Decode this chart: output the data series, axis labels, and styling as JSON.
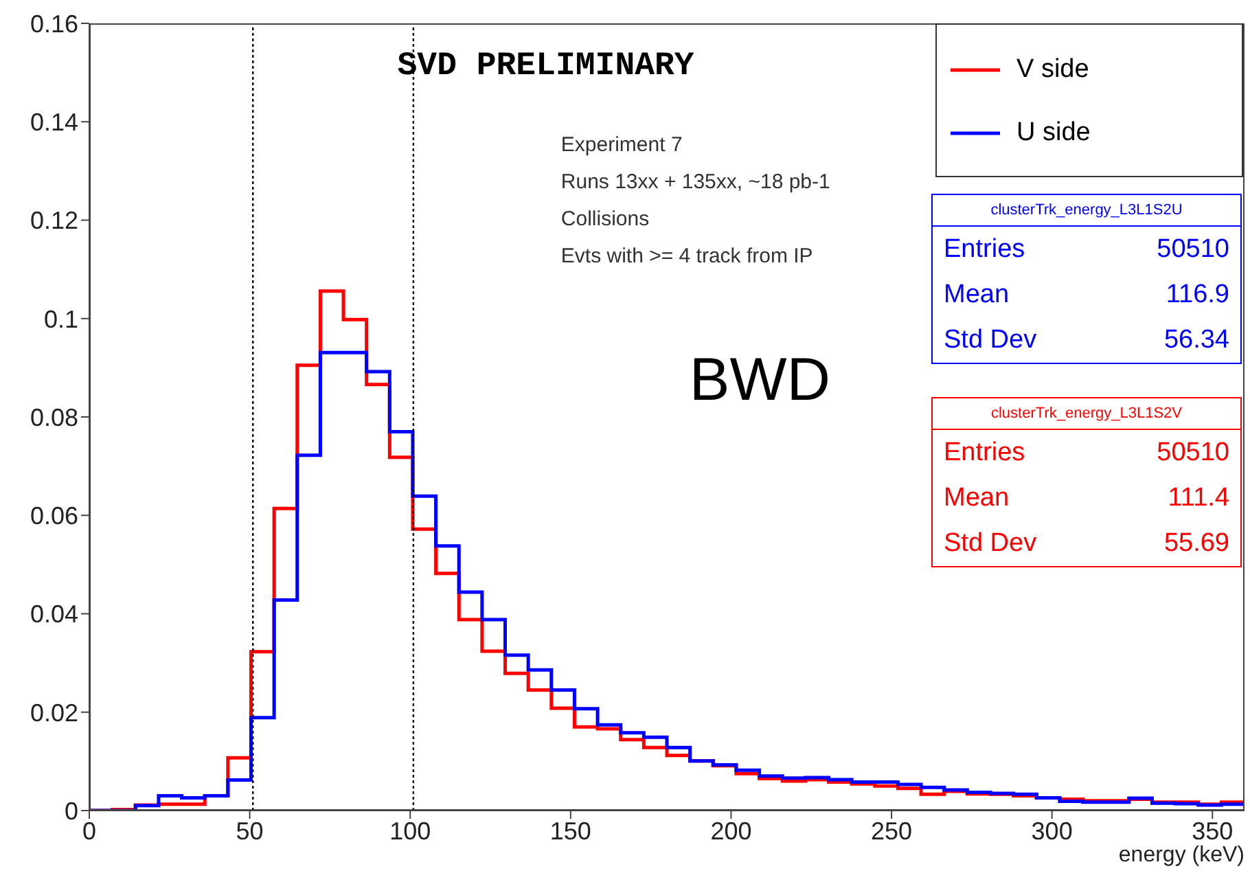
{
  "chart_data": {
    "type": "histogram",
    "title": "SVD PRELIMINARY",
    "xlabel": "energy (keV)",
    "bins": [
      0,
      7.2,
      14.4,
      21.6,
      28.8,
      36,
      43.2,
      50.4,
      57.6,
      64.8,
      72,
      79.2,
      86.4,
      93.6,
      100.8,
      108,
      115.2,
      122.4,
      129.6,
      136.8,
      144,
      151.2,
      158.4,
      165.6,
      172.8,
      180,
      187.2,
      194.4,
      201.6,
      208.8,
      216,
      223.2,
      230.4,
      237.6,
      244.8,
      252,
      259.2,
      266.4,
      273.6,
      280.8,
      288,
      295.2,
      302.4,
      309.6,
      316.8,
      324,
      331.2,
      338.4,
      345.6,
      352.8,
      360
    ],
    "series": [
      {
        "name": "V side",
        "color": "#ff0000",
        "values": [
          0,
          0.0002,
          0.0011,
          0.0013,
          0.0013,
          0.003,
          0.0107,
          0.0323,
          0.0614,
          0.0905,
          0.1056,
          0.0998,
          0.0866,
          0.0718,
          0.0572,
          0.0482,
          0.0388,
          0.0324,
          0.0279,
          0.0245,
          0.0208,
          0.017,
          0.0166,
          0.0144,
          0.0128,
          0.0112,
          0.0101,
          0.0091,
          0.0075,
          0.0065,
          0.006,
          0.0063,
          0.0058,
          0.0054,
          0.005,
          0.0045,
          0.0033,
          0.0039,
          0.0034,
          0.0033,
          0.003,
          0.0026,
          0.0023,
          0.002,
          0.002,
          0.0023,
          0.0017,
          0.0017,
          0.0013,
          0.0017
        ]
      },
      {
        "name": "U side",
        "color": "#0000ff",
        "values": [
          0,
          0,
          0.001,
          0.003,
          0.0026,
          0.003,
          0.0062,
          0.0189,
          0.0428,
          0.0722,
          0.0931,
          0.0931,
          0.0892,
          0.077,
          0.0639,
          0.0538,
          0.0444,
          0.0388,
          0.0316,
          0.0286,
          0.0245,
          0.0207,
          0.0174,
          0.0158,
          0.0149,
          0.0128,
          0.0101,
          0.0093,
          0.0082,
          0.007,
          0.0066,
          0.0067,
          0.0063,
          0.0058,
          0.0058,
          0.0053,
          0.0047,
          0.0042,
          0.0037,
          0.0035,
          0.0033,
          0.0026,
          0.0019,
          0.0017,
          0.0017,
          0.0025,
          0.0015,
          0.0014,
          0.0011,
          0.0013
        ]
      }
    ],
    "xlim": [
      0,
      360
    ],
    "xticks": [
      0,
      50,
      100,
      150,
      200,
      250,
      300,
      350
    ],
    "ylim": [
      0,
      0.16
    ],
    "yticks": [
      0,
      0.02,
      0.04,
      0.06,
      0.08,
      0.1,
      0.12,
      0.14,
      0.16
    ],
    "ref_lines": [
      {
        "axis": "x",
        "value": 51,
        "line_style": "dotted",
        "color": "#000000"
      },
      {
        "axis": "x",
        "value": 101,
        "line_style": "dotted",
        "color": "#000000"
      }
    ],
    "annotations": [
      "Experiment 7",
      "Runs 13xx + 135xx, ~18 pb-1",
      "Collisions",
      "Evts with >= 4 track from IP",
      "BWD",
      "clusterTrk_energy_L3L1S2U",
      "Entries",
      "50510",
      "Mean",
      "116.9",
      "Std Dev",
      "56.34",
      "clusterTrk_energy_L3L1S2V",
      "Entries",
      "50510",
      "Mean",
      "111.4",
      "Std Dev",
      "55.69"
    ],
    "legend": "top right",
    "grid": false
  }
}
